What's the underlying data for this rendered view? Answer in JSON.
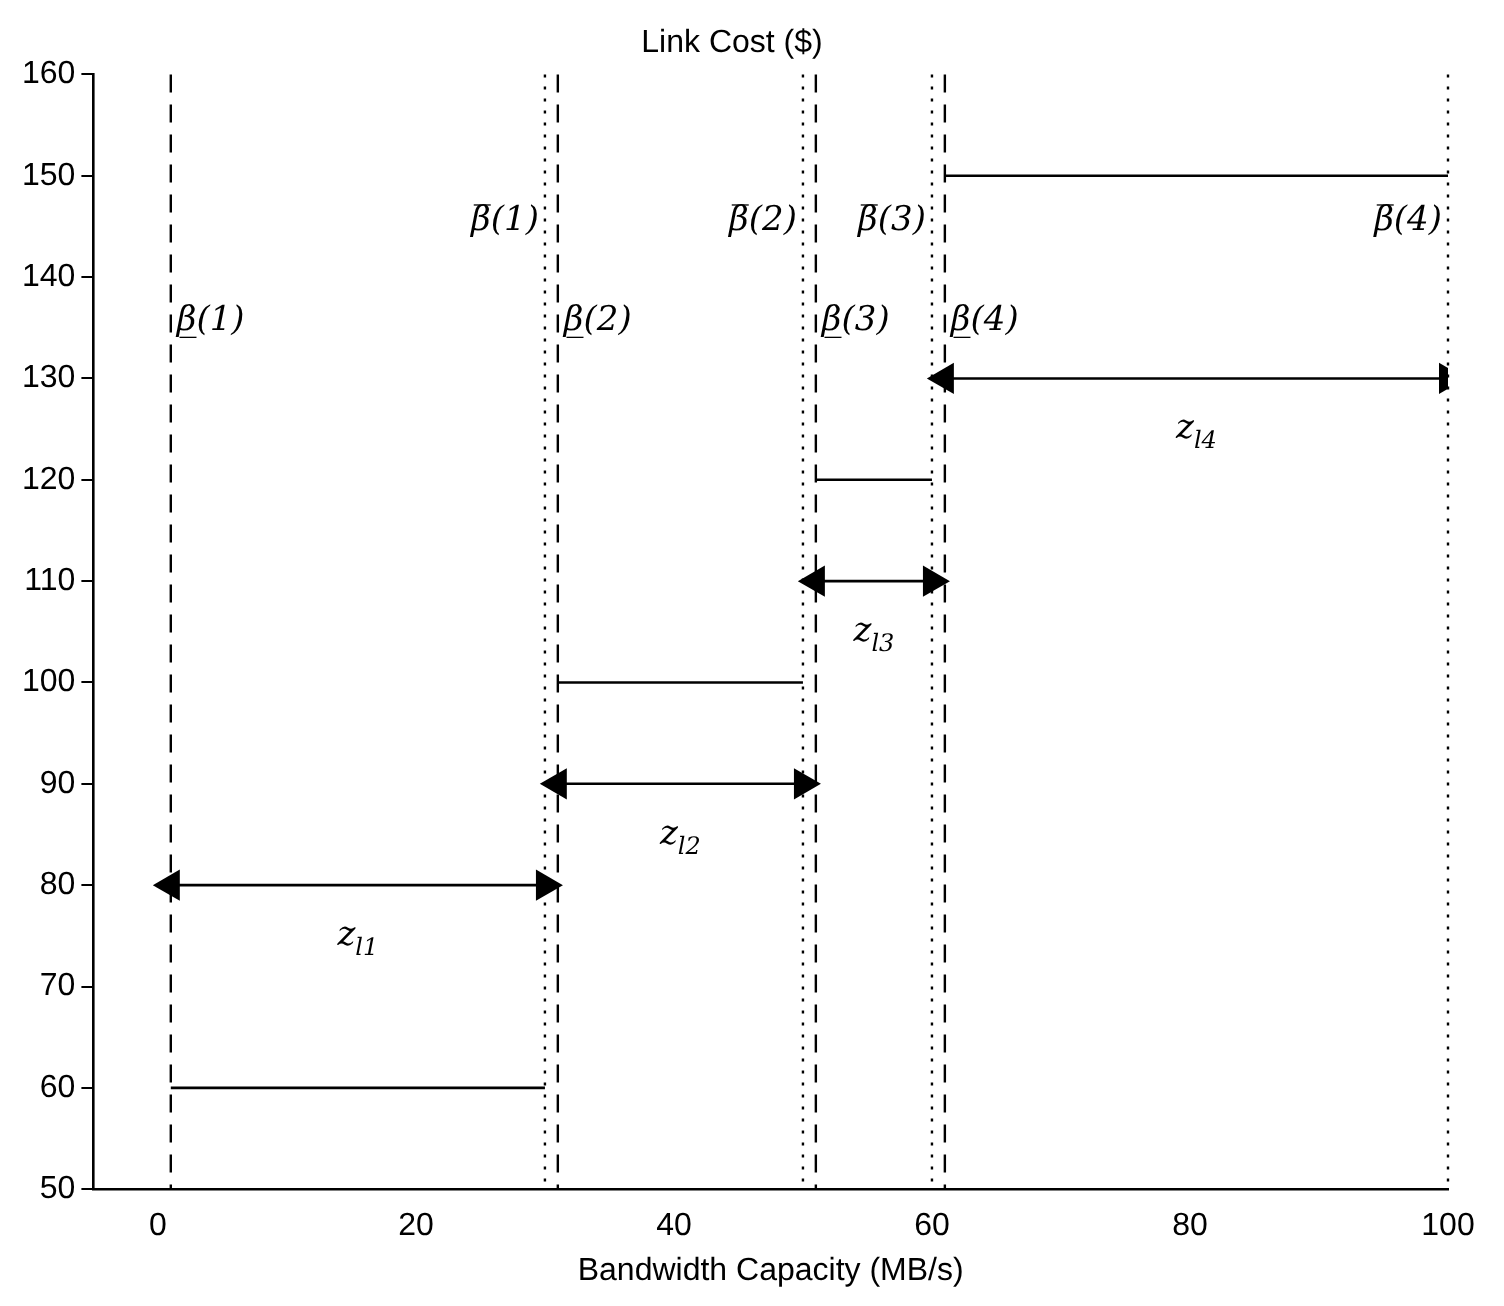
{
  "chart_data": {
    "type": "line",
    "title": "Link Cost ($)",
    "xlabel": "Bandwidth Capacity (MB/s)",
    "xlim": [
      -5,
      100
    ],
    "xticks": [
      0,
      20,
      40,
      60,
      80,
      100
    ],
    "ylim": [
      50,
      160
    ],
    "yticks": [
      50,
      60,
      70,
      80,
      90,
      100,
      110,
      120,
      130,
      140,
      150,
      160
    ],
    "grid": false,
    "legend": false,
    "marker": "none",
    "line_style": "solid",
    "series": [
      {
        "color": "#000000",
        "x": [
          1,
          30
        ],
        "values": [
          60,
          60
        ]
      },
      {
        "color": "#000000",
        "x": [
          31,
          50
        ],
        "values": [
          100,
          100
        ]
      },
      {
        "color": "#000000",
        "x": [
          51,
          60
        ],
        "values": [
          120,
          120
        ]
      },
      {
        "color": "#000000",
        "x": [
          61,
          100
        ],
        "values": [
          150,
          150
        ]
      },
      {
        "color": "#000000",
        "marker": "triangle",
        "x": [
          1,
          30
        ],
        "values": [
          80,
          80
        ]
      },
      {
        "color": "#000000",
        "marker": "triangle",
        "x": [
          31,
          50
        ],
        "values": [
          90,
          90
        ]
      },
      {
        "color": "#000000",
        "marker": "triangle",
        "x": [
          51,
          60
        ],
        "values": [
          110,
          110
        ]
      },
      {
        "color": "#000000",
        "marker": "triangle",
        "x": [
          61,
          100
        ],
        "values": [
          130,
          130
        ]
      }
    ],
    "ref_lines": [
      {
        "axis": "x",
        "value": 1,
        "label": "β̲(1)",
        "line_style": "dashed",
        "color": "#000000"
      },
      {
        "axis": "x",
        "value": 30,
        "label": "β̅(1)",
        "line_style": "dotted",
        "color": "#000000"
      },
      {
        "axis": "x",
        "value": 31,
        "label": "β̲(2)",
        "line_style": "dashed",
        "color": "#000000"
      },
      {
        "axis": "x",
        "value": 50,
        "label": "β̅(2)",
        "line_style": "dotted",
        "color": "#000000"
      },
      {
        "axis": "x",
        "value": 51,
        "label": "β̲(3)",
        "line_style": "dashed",
        "color": "#000000"
      },
      {
        "axis": "x",
        "value": 60,
        "label": "β̅(3)",
        "line_style": "dotted",
        "color": "#000000"
      },
      {
        "axis": "x",
        "value": 61,
        "label": "β̲(4)",
        "line_style": "dashed",
        "color": "#000000"
      },
      {
        "axis": "x",
        "value": 100,
        "label": "β̅(4)",
        "line_style": "dotted",
        "color": "#000000"
      }
    ],
    "annotations": [
      "z$_{l1}$",
      "z$_{l2}$",
      "z$_{l3}$",
      "z$_{l4}$"
    ]
  }
}
